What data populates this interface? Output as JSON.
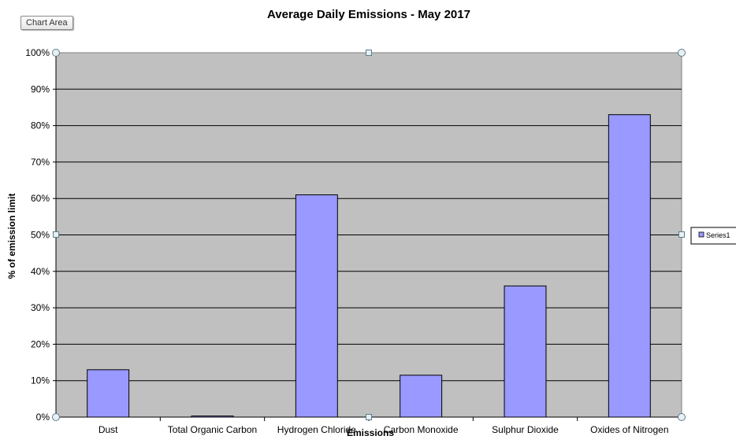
{
  "tooltip": {
    "label": "Chart Area"
  },
  "chart_data": {
    "type": "bar",
    "title": "Average Daily Emissions - May 2017",
    "xlabel": "Emissions",
    "ylabel": "% of emission limit",
    "categories": [
      "Dust",
      "Total Organic Carbon",
      "Hydrogen Chloride",
      "Carbon Monoxide",
      "Sulphur Dioxide",
      "Oxides of Nitrogen"
    ],
    "series": [
      {
        "name": "Series1",
        "values": [
          13,
          0.3,
          61,
          11.5,
          36,
          83
        ]
      }
    ],
    "ylim": [
      0,
      100
    ],
    "yticks": [
      "0%",
      "10%",
      "20%",
      "30%",
      "40%",
      "50%",
      "60%",
      "70%",
      "80%",
      "90%",
      "100%"
    ],
    "grid": true,
    "legend_position": "right",
    "colors": {
      "bar": "#9999ff",
      "plot_area": "#c0c0c0",
      "gridline": "#000000"
    }
  }
}
